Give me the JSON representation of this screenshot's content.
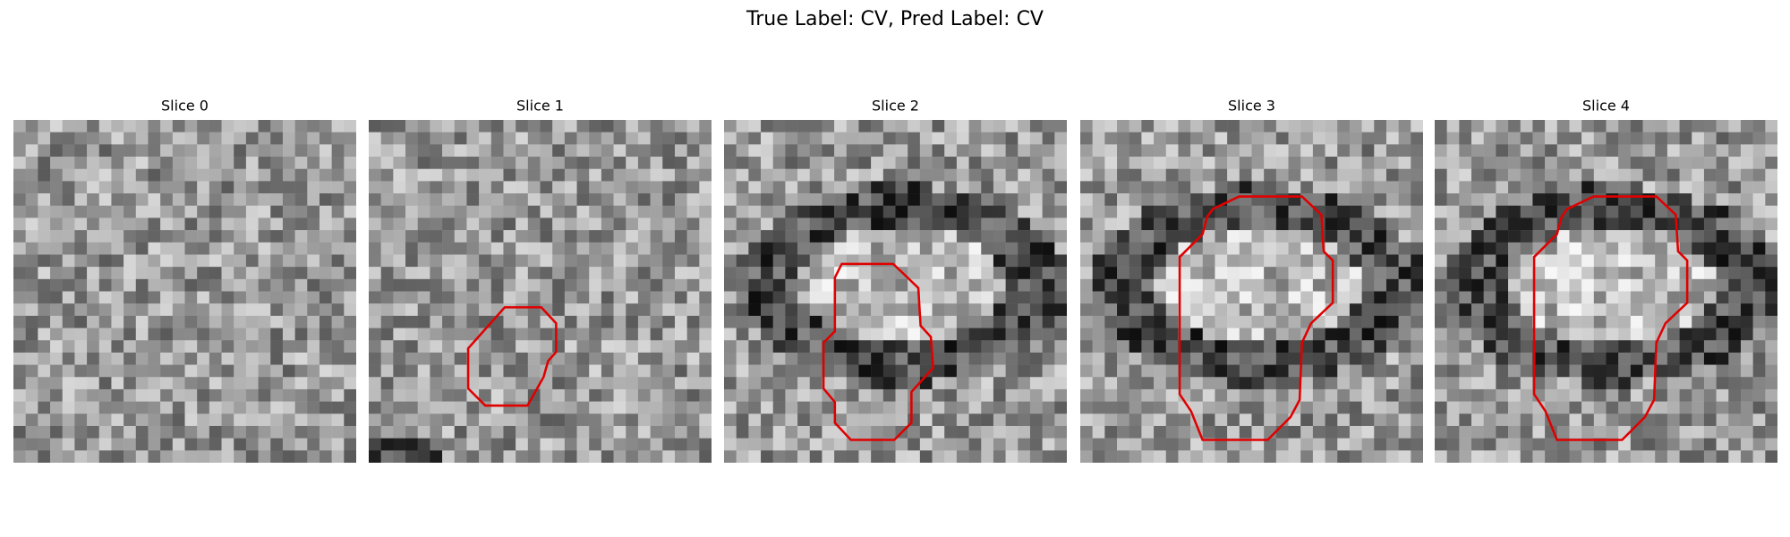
{
  "title": "True Label: CV, Pred Label: CV",
  "panels": [
    {
      "title": "Slice 0"
    },
    {
      "title": "Slice 1"
    },
    {
      "title": "Slice 2"
    },
    {
      "title": "Slice 3"
    },
    {
      "title": "Slice 4"
    }
  ]
}
